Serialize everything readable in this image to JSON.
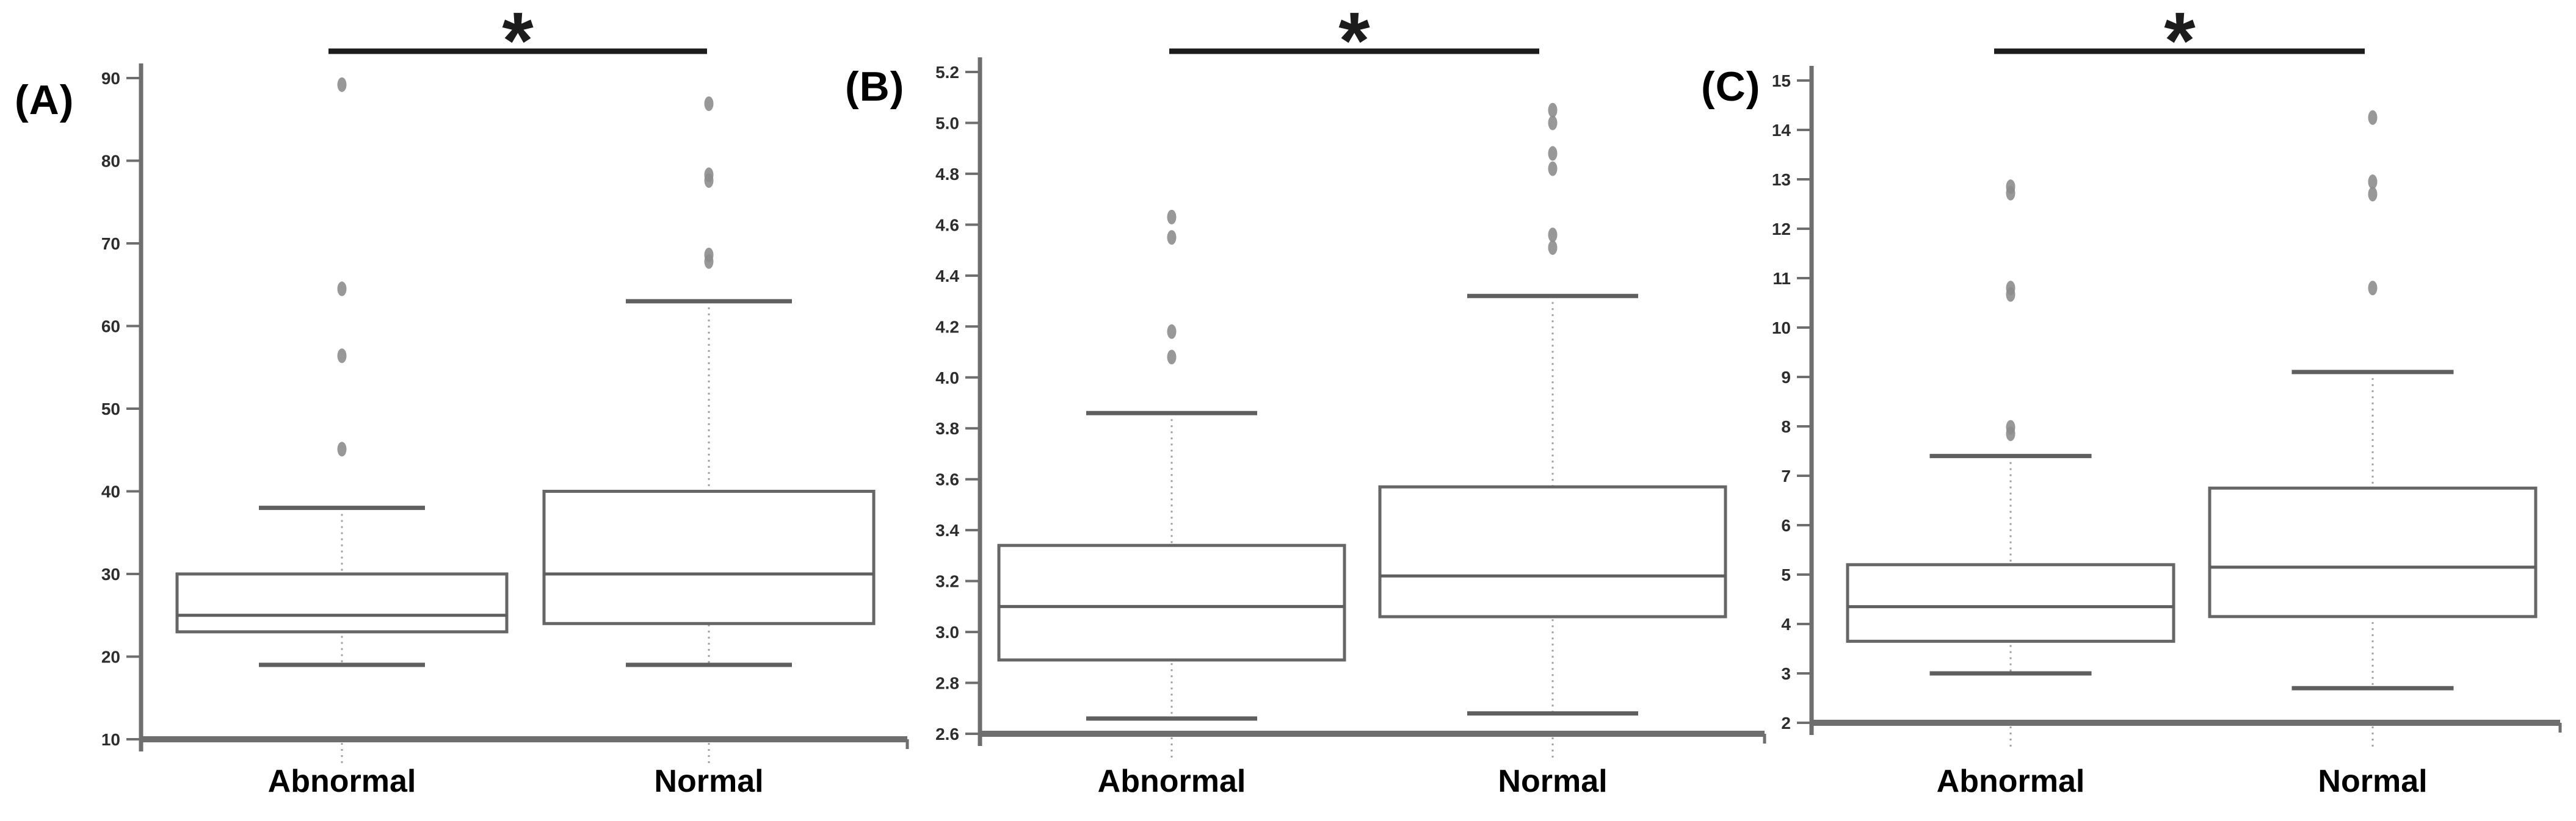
{
  "figure": {
    "background": "#ffffff",
    "colors": {
      "axis": "#6e6e6e",
      "box_stroke": "#666666",
      "whisker_cap": "#5f5f5f",
      "median": "#5f5f5f",
      "dotted_whisker": "#a0a0a0",
      "outlier_fill": "#8d8d8d",
      "sig_bar": "#1c1c1c",
      "tick_label": "#2d2d2d",
      "category_label": "#000000",
      "panel_label": "#000000",
      "box_fill": "#ffffff"
    }
  },
  "chart_data": [
    {
      "type": "boxplot",
      "panel_label": "(A)",
      "title": "",
      "xlabel": "",
      "ylabel": "",
      "categories": [
        "Abnormal",
        "Normal"
      ],
      "ylim": [
        10,
        90
      ],
      "ytick_step": 10,
      "ytick_decimals": 0,
      "grid": false,
      "significance": {
        "symbol": "*",
        "between": [
          "Abnormal",
          "Normal"
        ]
      },
      "series": [
        {
          "name": "Abnormal",
          "whisker_low": 19,
          "q1": 23,
          "median": 25,
          "q3": 30,
          "whisker_high": 38,
          "outliers": [
            45.1,
            56.4,
            64.5,
            89.2
          ]
        },
        {
          "name": "Normal",
          "whisker_low": 19,
          "q1": 24,
          "median": 30,
          "q3": 40,
          "whisker_high": 63,
          "outliers": [
            67.8,
            68.6,
            77.6,
            78.3,
            86.9
          ]
        }
      ]
    },
    {
      "type": "boxplot",
      "panel_label": "(B)",
      "title": "",
      "xlabel": "",
      "ylabel": "",
      "categories": [
        "Abnormal",
        "Normal"
      ],
      "ylim": [
        2.6,
        5.2
      ],
      "ytick_step": 0.2,
      "ytick_decimals": 1,
      "grid": false,
      "significance": {
        "symbol": "*",
        "between": [
          "Abnormal",
          "Normal"
        ]
      },
      "series": [
        {
          "name": "Abnormal",
          "whisker_low": 2.66,
          "q1": 2.89,
          "median": 3.1,
          "q3": 3.34,
          "whisker_high": 3.86,
          "outliers": [
            4.08,
            4.18,
            4.55,
            4.63
          ]
        },
        {
          "name": "Normal",
          "whisker_low": 2.68,
          "q1": 3.06,
          "median": 3.22,
          "q3": 3.57,
          "whisker_high": 4.32,
          "outliers": [
            4.51,
            4.56,
            4.82,
            4.88,
            5.0,
            5.05
          ]
        }
      ]
    },
    {
      "type": "boxplot",
      "panel_label": "(C)",
      "title": "",
      "xlabel": "",
      "ylabel": "",
      "categories": [
        "Abnormal",
        "Normal"
      ],
      "ylim": [
        2,
        15
      ],
      "ytick_step": 1,
      "ytick_decimals": 0,
      "grid": false,
      "significance": {
        "symbol": "*",
        "between": [
          "Abnormal",
          "Normal"
        ]
      },
      "series": [
        {
          "name": "Abnormal",
          "whisker_low": 3.0,
          "q1": 3.65,
          "median": 4.35,
          "q3": 5.2,
          "whisker_high": 7.4,
          "outliers": [
            7.85,
            7.98,
            10.67,
            10.8,
            12.72,
            12.85
          ]
        },
        {
          "name": "Normal",
          "whisker_low": 2.7,
          "q1": 4.15,
          "median": 5.15,
          "q3": 6.75,
          "whisker_high": 9.1,
          "outliers": [
            10.8,
            12.7,
            12.95,
            14.25
          ]
        }
      ]
    }
  ]
}
